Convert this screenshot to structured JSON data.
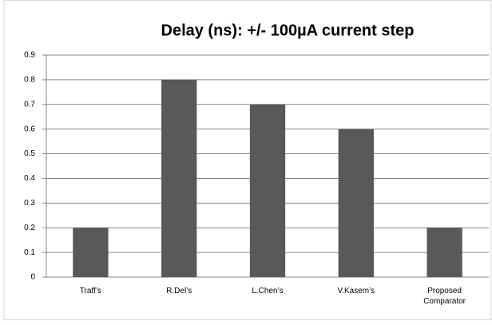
{
  "chart_data": {
    "type": "bar",
    "title": "Delay (ns): +/- 100µA current step",
    "categories": [
      "Traff’s",
      "R.Del’s",
      "L.Chen’s",
      "V.Kasem’s",
      "Proposed Comparator"
    ],
    "values": [
      0.2,
      0.8,
      0.7,
      0.6,
      0.2
    ],
    "color": "#595959",
    "ylim": [
      0,
      0.9
    ],
    "yticks": [
      0,
      0.1,
      0.2,
      0.3,
      0.4,
      0.5,
      0.6,
      0.7,
      0.8,
      0.9
    ],
    "grid": true
  }
}
